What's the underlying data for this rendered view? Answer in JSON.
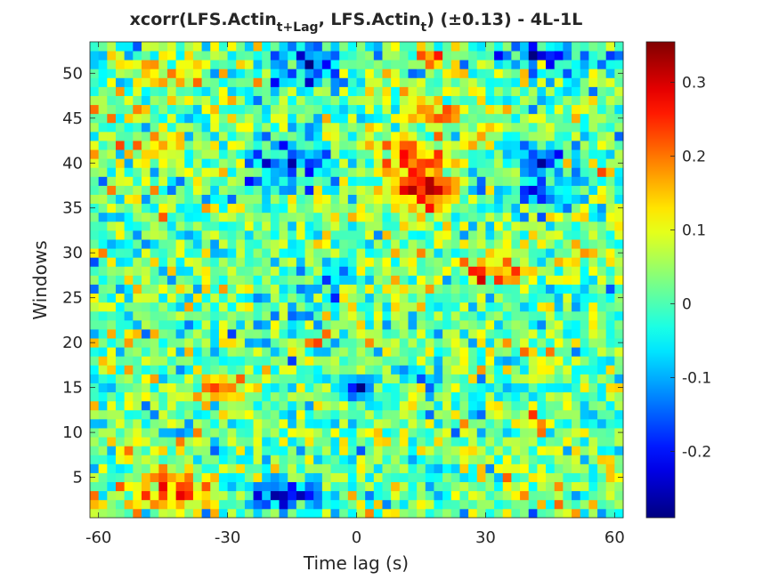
{
  "chart_data": {
    "type": "heatmap",
    "title": {
      "prefix": "xcorr(LFS.Actin",
      "sub1": "t+Lag",
      "middle": ", LFS.Actin",
      "sub2": "t",
      "suffix": ")  (±0.13) - 4L-1L"
    },
    "xlabel": "Time lag (s)",
    "ylabel": "Windows",
    "xlim": [
      -62,
      62
    ],
    "ylim": [
      0.5,
      53.5
    ],
    "x_step": 2,
    "y_count": 53,
    "xticks": [
      -60,
      -30,
      0,
      30,
      60
    ],
    "xtick_labels": [
      "-60",
      "-30",
      "0",
      "30",
      "60"
    ],
    "yticks": [
      5,
      10,
      15,
      20,
      25,
      30,
      35,
      40,
      45,
      50
    ],
    "ytick_labels": [
      "5",
      "10",
      "15",
      "20",
      "25",
      "30",
      "35",
      "40",
      "45",
      "50"
    ],
    "colormap": "jet",
    "clim": [
      -0.29,
      0.355
    ],
    "colorbar_ticks": [
      -0.2,
      -0.1,
      0,
      0.1,
      0.2,
      0.3
    ],
    "colorbar_tick_labels": [
      "-0.2",
      "-0.1",
      "0",
      "0.1",
      "0.2",
      "0.3"
    ],
    "random_seed": 7,
    "blobs": [
      {
        "x": 15,
        "y": 37,
        "sx": 5,
        "sy": 1.8,
        "a": 0.24
      },
      {
        "x": 14,
        "y": 41,
        "sx": 6,
        "sy": 1.5,
        "a": 0.18
      },
      {
        "x": 17,
        "y": 46,
        "sx": 6,
        "sy": 1.5,
        "a": 0.14
      },
      {
        "x": 18,
        "y": 52,
        "sx": 5,
        "sy": 1.2,
        "a": 0.14
      },
      {
        "x": -12,
        "y": 51,
        "sx": 6,
        "sy": 2.0,
        "a": -0.17
      },
      {
        "x": -15,
        "y": 40,
        "sx": 7,
        "sy": 2.0,
        "a": -0.15
      },
      {
        "x": -18,
        "y": 3,
        "sx": 7,
        "sy": 1.2,
        "a": -0.2
      },
      {
        "x": -43,
        "y": 3,
        "sx": 7,
        "sy": 1.2,
        "a": 0.16
      },
      {
        "x": -45,
        "y": 5,
        "sx": 5,
        "sy": 1.0,
        "a": 0.12
      },
      {
        "x": 40,
        "y": 37,
        "sx": 6,
        "sy": 2.0,
        "a": -0.15
      },
      {
        "x": 43,
        "y": 52,
        "sx": 10,
        "sy": 1.5,
        "a": -0.17
      },
      {
        "x": 42,
        "y": 41,
        "sx": 6,
        "sy": 1.5,
        "a": -0.12
      },
      {
        "x": 32,
        "y": 28,
        "sx": 5,
        "sy": 1.0,
        "a": 0.18
      },
      {
        "x": 0,
        "y": 15,
        "sx": 4,
        "sy": 1.0,
        "a": -0.16
      },
      {
        "x": -48,
        "y": 42,
        "sx": 6,
        "sy": 1.0,
        "a": 0.13
      },
      {
        "x": -30,
        "y": 15,
        "sx": 6,
        "sy": 1.0,
        "a": 0.12
      },
      {
        "x": -45,
        "y": 50,
        "sx": 6,
        "sy": 1.0,
        "a": 0.12
      },
      {
        "x": -10,
        "y": 26,
        "sx": 6,
        "sy": 2.0,
        "a": -0.08
      }
    ]
  }
}
